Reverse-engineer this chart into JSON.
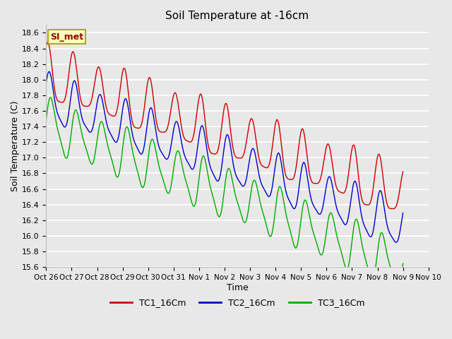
{
  "title": "Soil Temperature at -16cm",
  "xlabel": "Time",
  "ylabel": "Soil Temperature (C)",
  "ylim": [
    15.6,
    18.7
  ],
  "xlim": [
    0,
    336
  ],
  "bg_color": "#e8e8e8",
  "tc1_color": "#cc0000",
  "tc2_color": "#0000cc",
  "tc3_color": "#00aa00",
  "tick_labels": [
    "Oct 26",
    "Oct 27",
    "Oct 28",
    "Oct 29",
    "Oct 30",
    "Oct 31",
    "Nov 1",
    "Nov 2",
    "Nov 3",
    "Nov 4",
    "Nov 5",
    "Nov 6",
    "Nov 7",
    "Nov 8",
    "Nov 9",
    "Nov 10"
  ],
  "tick_positions": [
    0,
    24,
    48,
    72,
    96,
    120,
    144,
    168,
    192,
    216,
    240,
    264,
    288,
    312,
    336,
    360
  ],
  "yticks": [
    15.6,
    15.8,
    16.0,
    16.2,
    16.4,
    16.6,
    16.8,
    17.0,
    17.2,
    17.4,
    17.6,
    17.8,
    18.0,
    18.2,
    18.4,
    18.6
  ],
  "figsize": [
    6.4,
    4.8
  ],
  "dpi": 100
}
